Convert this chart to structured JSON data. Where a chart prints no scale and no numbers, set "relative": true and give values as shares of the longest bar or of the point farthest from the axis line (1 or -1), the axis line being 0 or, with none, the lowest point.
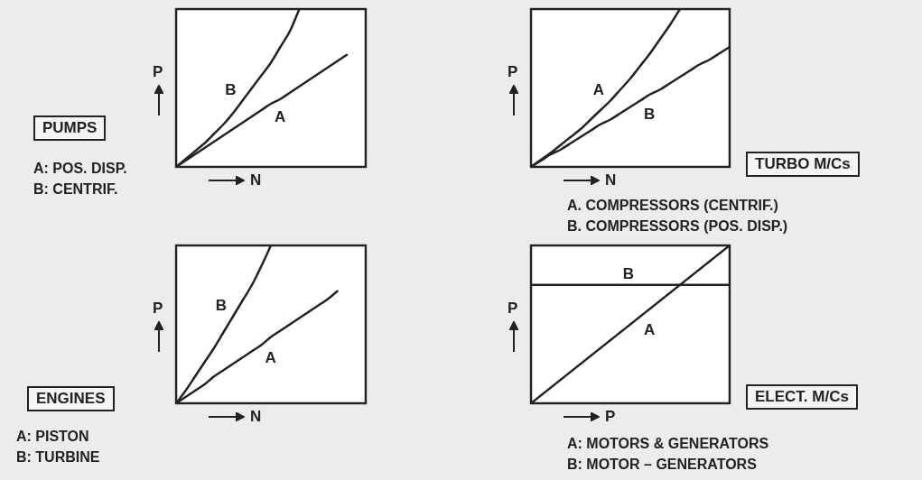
{
  "chart_data": [
    {
      "type": "line",
      "title": "PUMPS",
      "xlabel": "N",
      "ylabel": "P",
      "annotations": [
        "A: POS. DISP.",
        "B: CENTRIF."
      ],
      "relative": true,
      "legend": false,
      "tick_labels": false,
      "grid": false,
      "marker": "none",
      "categories": [
        null,
        null,
        null,
        null,
        null,
        null,
        null,
        null,
        null,
        null,
        null,
        null,
        null,
        null,
        null,
        null,
        null,
        null,
        null,
        null,
        null
      ],
      "series": [
        {
          "name": "A",
          "color": "#222222",
          "values": [
            0,
            0.04,
            0.08,
            0.12,
            0.16,
            0.2,
            0.24,
            0.28,
            0.32,
            0.36,
            0.4,
            0.43,
            0.47,
            0.51,
            0.55,
            0.59,
            0.63,
            0.67,
            0.71,
            null,
            null
          ]
        },
        {
          "name": "B",
          "color": "#222222",
          "values": [
            0,
            0.05,
            0.1,
            0.15,
            0.21,
            0.27,
            0.34,
            0.42,
            0.5,
            0.58,
            0.66,
            0.76,
            0.86,
            1,
            null,
            null,
            null,
            null,
            null,
            null,
            null
          ]
        }
      ]
    },
    {
      "type": "line",
      "xlabel": "N",
      "ylabel": "P",
      "annotations": [
        "TURBO M/Cs",
        "A. COMPRESSORS (CENTRIF.)",
        "B. COMPRESSORS (POS. DISP.)"
      ],
      "relative": true,
      "legend": false,
      "tick_labels": false,
      "grid": false,
      "marker": "none",
      "categories": [
        null,
        null,
        null,
        null,
        null,
        null,
        null,
        null,
        null,
        null,
        null,
        null,
        null,
        null,
        null,
        null,
        null,
        null,
        null,
        null,
        null
      ],
      "series": [
        {
          "name": "A",
          "color": "#222222",
          "values": [
            0,
            0.045,
            0.09,
            0.14,
            0.19,
            0.24,
            0.3,
            0.36,
            0.42,
            0.49,
            0.56,
            0.64,
            0.72,
            0.81,
            0.9,
            1,
            null,
            null,
            null,
            null,
            null
          ]
        },
        {
          "name": "B",
          "color": "#222222",
          "values": [
            0,
            0.04,
            0.08,
            0.11,
            0.15,
            0.19,
            0.23,
            0.27,
            0.3,
            0.34,
            0.38,
            0.42,
            0.46,
            0.49,
            0.53,
            0.57,
            0.61,
            0.65,
            0.68,
            0.72,
            0.76
          ]
        }
      ]
    },
    {
      "type": "line",
      "title": "ENGINES",
      "xlabel": "N",
      "ylabel": "P",
      "annotations": [
        "A: PISTON",
        "B: TURBINE"
      ],
      "relative": true,
      "legend": false,
      "tick_labels": false,
      "grid": false,
      "marker": "none",
      "categories": [
        null,
        null,
        null,
        null,
        null,
        null,
        null,
        null,
        null,
        null,
        null,
        null,
        null,
        null,
        null,
        null,
        null,
        null,
        null,
        null,
        null
      ],
      "series": [
        {
          "name": "A",
          "color": "#222222",
          "values": [
            0,
            0.04,
            0.08,
            0.12,
            0.17,
            0.21,
            0.25,
            0.29,
            0.33,
            0.37,
            0.42,
            0.46,
            0.5,
            0.54,
            0.58,
            0.62,
            0.66,
            0.71,
            null,
            null,
            null
          ]
        },
        {
          "name": "B",
          "color": "#222222",
          "values": [
            0,
            0.08,
            0.17,
            0.26,
            0.35,
            0.45,
            0.55,
            0.65,
            0.75,
            0.87,
            1,
            null,
            null,
            null,
            null,
            null,
            null,
            null,
            null,
            null,
            null
          ]
        }
      ]
    },
    {
      "type": "line",
      "xlabel": "P",
      "ylabel": "P",
      "annotations": [
        "ELECT. M/Cs",
        "A: MOTORS & GENERATORS",
        "B: MOTOR – GENERATORS"
      ],
      "relative": true,
      "legend": false,
      "tick_labels": false,
      "grid": false,
      "marker": "none",
      "categories": [
        null,
        null,
        null,
        null,
        null,
        null,
        null,
        null,
        null,
        null,
        null,
        null,
        null,
        null,
        null,
        null,
        null,
        null,
        null,
        null,
        null
      ],
      "series": [
        {
          "name": "A",
          "color": "#222222",
          "values": [
            0,
            0.05,
            0.1,
            0.15,
            0.2,
            0.25,
            0.3,
            0.35,
            0.4,
            0.45,
            0.5,
            0.55,
            0.6,
            0.65,
            0.7,
            0.75,
            0.8,
            0.85,
            0.9,
            0.95,
            1
          ]
        },
        {
          "name": "B",
          "color": "#222222",
          "values": [
            0.75,
            0.75,
            0.75,
            0.75,
            0.75,
            0.75,
            0.75,
            0.75,
            0.75,
            0.75,
            0.75,
            0.75,
            0.75,
            0.75,
            0.75,
            0.75,
            0.75,
            0.75,
            0.75,
            0.75,
            0.75
          ]
        }
      ]
    }
  ]
}
